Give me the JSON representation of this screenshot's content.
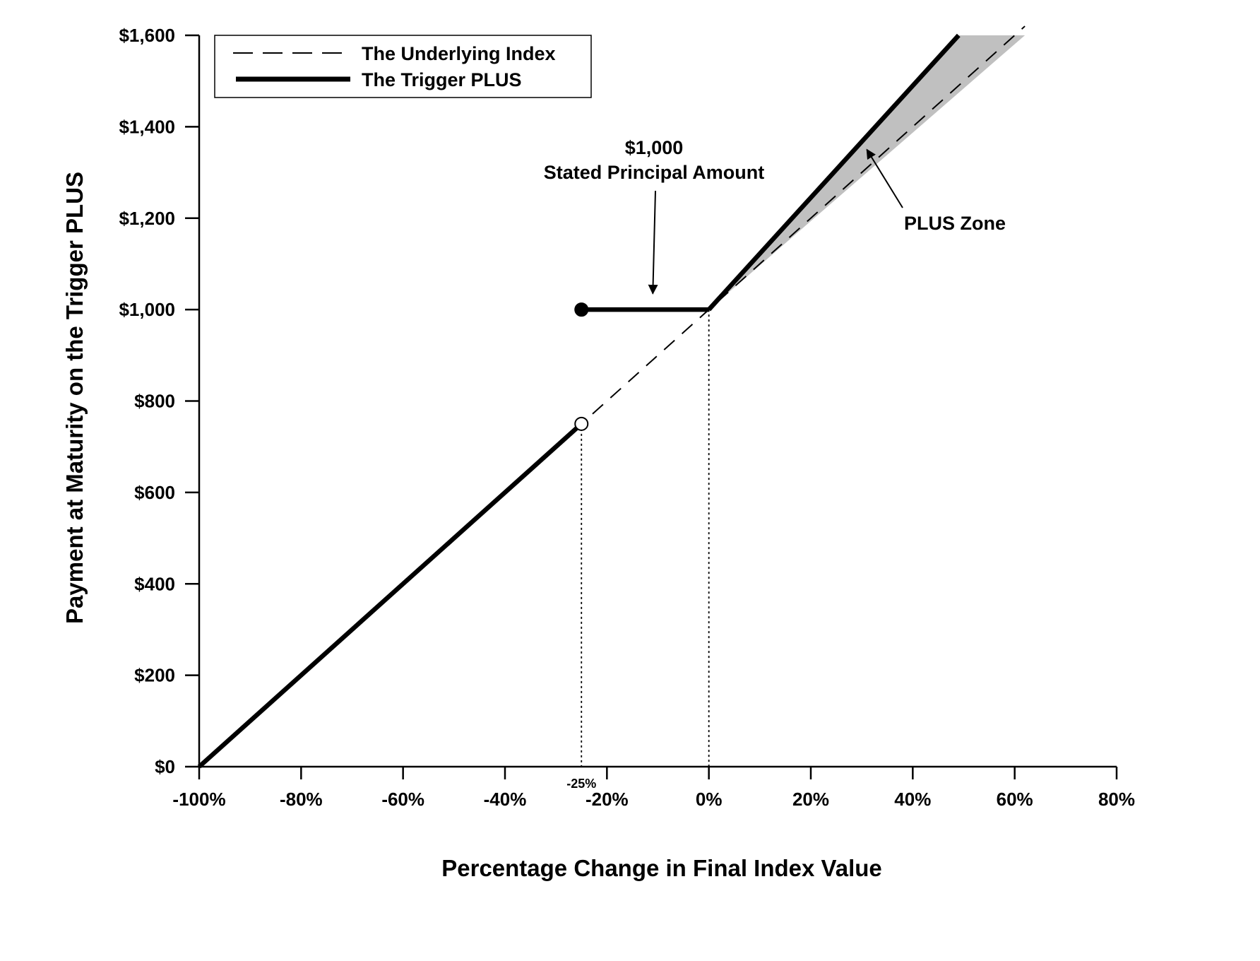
{
  "chart_data": {
    "type": "line",
    "title": "",
    "xlabel": "Percentage Change in Final Index Value",
    "ylabel": "Payment at Maturity on the Trigger PLUS",
    "xlim": [
      -100,
      80
    ],
    "ylim": [
      0,
      1600
    ],
    "x_ticks": [
      -100,
      -80,
      -60,
      -40,
      -20,
      0,
      20,
      40,
      60,
      80
    ],
    "x_tick_labels": [
      "-100%",
      "-80%",
      "-60%",
      "-40%",
      "-20%",
      "0%",
      "20%",
      "40%",
      "60%",
      "80%"
    ],
    "y_ticks": [
      0,
      200,
      400,
      600,
      800,
      1000,
      1200,
      1400,
      1600
    ],
    "y_tick_labels": [
      "$0",
      "$200",
      "$400",
      "$600",
      "$800",
      "$1,000",
      "$1,200",
      "$1,400",
      "$1,600"
    ],
    "extra_x_tick": {
      "x": -25,
      "label": "-25%"
    },
    "grid": false,
    "legend_position": "top-left",
    "series": [
      {
        "name": "The Underlying Index",
        "style": "dashed",
        "points": [
          [
            -100,
            0
          ],
          [
            62,
            1620
          ]
        ]
      },
      {
        "name": "The Trigger PLUS",
        "style": "solid-thick",
        "segments": [
          [
            [
              -100,
              0
            ],
            [
              -25,
              750
            ]
          ],
          [
            [
              -25,
              1000
            ],
            [
              0,
              1000
            ]
          ],
          [
            [
              0,
              1000
            ],
            [
              49,
              1600
            ]
          ]
        ],
        "markers": [
          {
            "x": -25,
            "y": 1000,
            "fill": "filled"
          },
          {
            "x": -25,
            "y": 750,
            "fill": "open"
          }
        ]
      }
    ],
    "reference_lines": [
      {
        "x": -25,
        "from_y": 750,
        "to_y": 0
      },
      {
        "x": 0,
        "from_y": 1000,
        "to_y": 0
      }
    ],
    "shaded_region": {
      "label": "PLUS Zone",
      "polygon": [
        [
          0,
          1000
        ],
        [
          49,
          1600
        ],
        [
          62,
          1600
        ]
      ],
      "color": "#c0c0c0"
    },
    "annotations": [
      {
        "id": "principal",
        "lines": [
          "$1,000",
          "Stated Principal Amount"
        ],
        "arrow_to": [
          -11,
          1035
        ]
      },
      {
        "id": "plus-zone",
        "lines": [
          "PLUS Zone"
        ],
        "arrow_to": [
          31,
          1350
        ]
      }
    ]
  }
}
